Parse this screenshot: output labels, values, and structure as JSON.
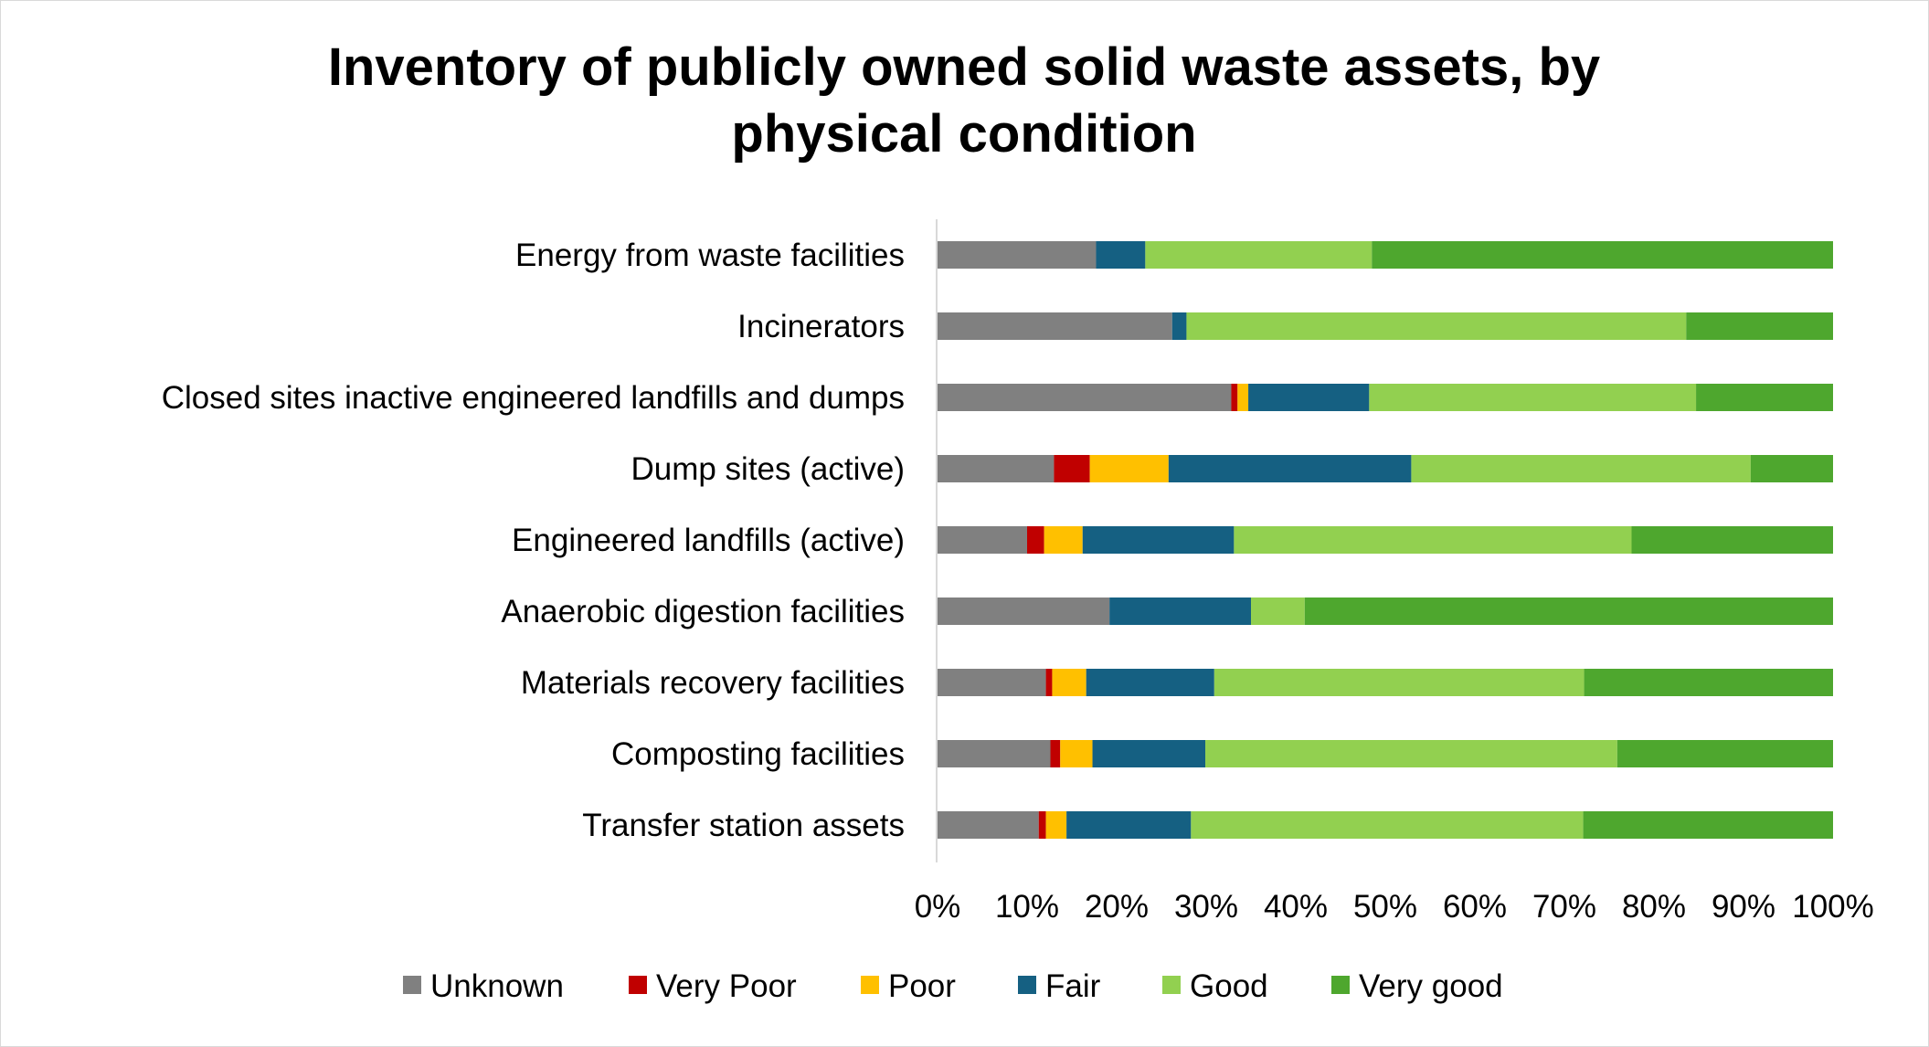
{
  "chart_data": {
    "type": "bar",
    "orientation": "horizontal",
    "stacked": "percent",
    "title": "Inventory of publicly owned solid waste assets, by physical condition",
    "title_lines": [
      "Inventory of publicly owned solid waste assets, by",
      "physical condition"
    ],
    "xlabel": "",
    "ylabel": "",
    "xlim": [
      0,
      100
    ],
    "x_ticks": [
      "0%",
      "10%",
      "20%",
      "30%",
      "40%",
      "50%",
      "60%",
      "70%",
      "80%",
      "90%",
      "100%"
    ],
    "grid": false,
    "legend_position": "bottom",
    "categories": [
      "Energy from waste facilities",
      "Incinerators",
      "Closed sites inactive engineered landfills and dumps",
      "Dump sites (active)",
      "Engineered landfills (active)",
      "Anaerobic digestion facilities",
      "Materials recovery facilities",
      "Composting facilities",
      "Transfer station assets"
    ],
    "series": [
      {
        "name": "Unknown",
        "color": "#808080",
        "values": [
          17.7,
          26.2,
          32.8,
          13.0,
          10.0,
          19.2,
          12.1,
          12.6,
          11.3
        ]
      },
      {
        "name": "Very Poor",
        "color": "#C00000",
        "values": [
          0,
          0,
          0.7,
          4.0,
          1.9,
          0,
          0.7,
          1.1,
          0.8
        ]
      },
      {
        "name": "Poor",
        "color": "#FFC000",
        "values": [
          0,
          0,
          1.2,
          8.8,
          4.3,
          0,
          3.8,
          3.6,
          2.3
        ]
      },
      {
        "name": "Fair",
        "color": "#156082",
        "values": [
          5.5,
          1.6,
          13.5,
          27.1,
          16.9,
          15.8,
          14.3,
          12.6,
          13.9
        ]
      },
      {
        "name": "Good",
        "color": "#92D050",
        "values": [
          25.3,
          55.8,
          36.5,
          37.9,
          44.4,
          6.0,
          41.3,
          46.0,
          43.8
        ]
      },
      {
        "name": "Very good",
        "color": "#4EA72E",
        "values": [
          51.5,
          16.4,
          15.3,
          9.2,
          22.5,
          59.0,
          27.8,
          24.1,
          27.9
        ]
      }
    ]
  }
}
